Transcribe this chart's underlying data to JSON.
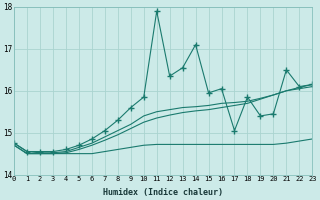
{
  "xlabel": "Humidex (Indice chaleur)",
  "bg_color": "#cceae8",
  "grid_color": "#aad4d0",
  "line_color": "#1a7a6e",
  "xlim": [
    0,
    23
  ],
  "ylim": [
    14,
    18
  ],
  "yticks": [
    14,
    15,
    16,
    17,
    18
  ],
  "xticks": [
    0,
    1,
    2,
    3,
    4,
    5,
    6,
    7,
    8,
    9,
    10,
    11,
    12,
    13,
    14,
    15,
    16,
    17,
    18,
    19,
    20,
    21,
    22,
    23
  ],
  "series": [
    {
      "x": [
        0,
        1,
        2,
        3,
        4,
        5,
        6,
        7,
        8,
        9,
        10,
        11,
        12,
        13,
        14,
        15,
        16,
        17,
        18,
        19,
        20,
        21,
        22,
        23
      ],
      "y": [
        14.7,
        14.5,
        14.5,
        14.5,
        14.5,
        14.5,
        14.5,
        14.55,
        14.6,
        14.65,
        14.7,
        14.72,
        14.72,
        14.72,
        14.72,
        14.72,
        14.72,
        14.72,
        14.72,
        14.72,
        14.72,
        14.75,
        14.8,
        14.85
      ],
      "marker": false
    },
    {
      "x": [
        0,
        1,
        2,
        3,
        4,
        5,
        6,
        7,
        8,
        9,
        10,
        11,
        12,
        13,
        14,
        15,
        16,
        17,
        18,
        19,
        20,
        21,
        22,
        23
      ],
      "y": [
        14.7,
        14.5,
        14.5,
        14.5,
        14.52,
        14.6,
        14.7,
        14.82,
        14.95,
        15.1,
        15.25,
        15.35,
        15.42,
        15.48,
        15.52,
        15.55,
        15.6,
        15.65,
        15.7,
        15.8,
        15.9,
        16.0,
        16.05,
        16.1
      ],
      "marker": false
    },
    {
      "x": [
        0,
        1,
        2,
        3,
        4,
        5,
        6,
        7,
        8,
        9,
        10,
        11,
        12,
        13,
        14,
        15,
        16,
        17,
        18,
        19,
        20,
        21,
        22,
        23
      ],
      "y": [
        14.75,
        14.55,
        14.52,
        14.52,
        14.55,
        14.65,
        14.75,
        14.9,
        15.05,
        15.2,
        15.4,
        15.5,
        15.55,
        15.6,
        15.62,
        15.65,
        15.7,
        15.72,
        15.75,
        15.82,
        15.9,
        16.0,
        16.08,
        16.15
      ],
      "marker": false
    },
    {
      "x": [
        0,
        1,
        2,
        3,
        4,
        5,
        6,
        7,
        8,
        9,
        10,
        11,
        12,
        13,
        14,
        15,
        16,
        17,
        18,
        19,
        20,
        21,
        22,
        23
      ],
      "y": [
        14.75,
        14.55,
        14.55,
        14.55,
        14.6,
        14.7,
        14.85,
        15.05,
        15.3,
        15.6,
        15.85,
        17.9,
        16.35,
        16.55,
        17.1,
        15.95,
        16.05,
        15.05,
        15.85,
        15.4,
        15.45,
        16.5,
        16.1,
        16.15
      ],
      "marker": true
    }
  ]
}
